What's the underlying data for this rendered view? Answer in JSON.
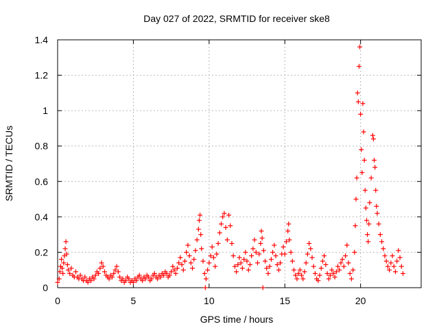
{
  "chart_data": {
    "type": "scatter",
    "title": "Day 027 of 2022, SRMTID for receiver ske8",
    "xlabel": "GPS time / hours",
    "ylabel": "SRMTID / TECUs",
    "xlim": [
      0,
      24
    ],
    "ylim": [
      0,
      1.4
    ],
    "xticks": [
      0,
      5,
      10,
      15,
      20
    ],
    "xtick_labels": [
      "0",
      "5",
      "10",
      "15",
      "20"
    ],
    "yticks": [
      0,
      0.2,
      0.4,
      0.6,
      0.8,
      1.0,
      1.2,
      1.4
    ],
    "ytick_labels": [
      "0",
      "0.2",
      "0.4",
      "0.6",
      "0.8",
      "1",
      "1.2",
      "1.4"
    ],
    "grid": true,
    "marker": "+",
    "series": [
      {
        "name": "SRMTID",
        "color": "#ff0000",
        "points": [
          [
            0.0,
            0.03
          ],
          [
            0.1,
            0.05
          ],
          [
            0.15,
            0.09
          ],
          [
            0.2,
            0.12
          ],
          [
            0.25,
            0.16
          ],
          [
            0.3,
            0.11
          ],
          [
            0.35,
            0.08
          ],
          [
            0.4,
            0.14
          ],
          [
            0.45,
            0.18
          ],
          [
            0.5,
            0.22
          ],
          [
            0.55,
            0.26
          ],
          [
            0.6,
            0.19
          ],
          [
            0.65,
            0.13
          ],
          [
            0.7,
            0.1
          ],
          [
            0.8,
            0.08
          ],
          [
            0.9,
            0.11
          ],
          [
            1.0,
            0.07
          ],
          [
            1.1,
            0.06
          ],
          [
            1.2,
            0.09
          ],
          [
            1.3,
            0.06
          ],
          [
            1.4,
            0.05
          ],
          [
            1.5,
            0.07
          ],
          [
            1.6,
            0.05
          ],
          [
            1.7,
            0.04
          ],
          [
            1.8,
            0.06
          ],
          [
            1.9,
            0.04
          ],
          [
            2.0,
            0.03
          ],
          [
            2.1,
            0.05
          ],
          [
            2.2,
            0.04
          ],
          [
            2.3,
            0.06
          ],
          [
            2.4,
            0.05
          ],
          [
            2.5,
            0.07
          ],
          [
            2.6,
            0.09
          ],
          [
            2.7,
            0.08
          ],
          [
            2.8,
            0.11
          ],
          [
            2.9,
            0.14
          ],
          [
            3.0,
            0.12
          ],
          [
            3.1,
            0.09
          ],
          [
            3.2,
            0.07
          ],
          [
            3.3,
            0.06
          ],
          [
            3.4,
            0.05
          ],
          [
            3.5,
            0.07
          ],
          [
            3.6,
            0.06
          ],
          [
            3.7,
            0.08
          ],
          [
            3.8,
            0.1
          ],
          [
            3.9,
            0.12
          ],
          [
            4.0,
            0.09
          ],
          [
            4.1,
            0.06
          ],
          [
            4.2,
            0.04
          ],
          [
            4.3,
            0.05
          ],
          [
            4.4,
            0.03
          ],
          [
            4.5,
            0.04
          ],
          [
            4.6,
            0.06
          ],
          [
            4.7,
            0.05
          ],
          [
            4.8,
            0.03
          ],
          [
            4.9,
            0.04
          ],
          [
            5.0,
            0.03
          ],
          [
            5.1,
            0.05
          ],
          [
            5.2,
            0.04
          ],
          [
            5.3,
            0.06
          ],
          [
            5.4,
            0.07
          ],
          [
            5.5,
            0.05
          ],
          [
            5.6,
            0.04
          ],
          [
            5.7,
            0.06
          ],
          [
            5.8,
            0.05
          ],
          [
            5.9,
            0.07
          ],
          [
            6.0,
            0.06
          ],
          [
            6.1,
            0.04
          ],
          [
            6.2,
            0.05
          ],
          [
            6.3,
            0.07
          ],
          [
            6.4,
            0.08
          ],
          [
            6.5,
            0.06
          ],
          [
            6.6,
            0.05
          ],
          [
            6.7,
            0.07
          ],
          [
            6.8,
            0.06
          ],
          [
            6.9,
            0.08
          ],
          [
            7.0,
            0.07
          ],
          [
            7.1,
            0.09
          ],
          [
            7.2,
            0.08
          ],
          [
            7.3,
            0.06
          ],
          [
            7.4,
            0.07
          ],
          [
            7.5,
            0.09
          ],
          [
            7.6,
            0.12
          ],
          [
            7.7,
            0.1
          ],
          [
            7.8,
            0.08
          ],
          [
            7.9,
            0.11
          ],
          [
            8.0,
            0.14
          ],
          [
            8.1,
            0.17
          ],
          [
            8.2,
            0.13
          ],
          [
            8.3,
            0.1
          ],
          [
            8.4,
            0.15
          ],
          [
            8.5,
            0.2
          ],
          [
            8.6,
            0.24
          ],
          [
            8.7,
            0.18
          ],
          [
            8.8,
            0.14
          ],
          [
            8.9,
            0.11
          ],
          [
            9.0,
            0.16
          ],
          [
            9.1,
            0.21
          ],
          [
            9.2,
            0.27
          ],
          [
            9.3,
            0.33
          ],
          [
            9.35,
            0.38
          ],
          [
            9.4,
            0.41
          ],
          [
            9.45,
            0.3
          ],
          [
            9.5,
            0.22
          ],
          [
            9.6,
            0.15
          ],
          [
            9.7,
            0.08
          ],
          [
            9.75,
            0.0
          ],
          [
            9.8,
            0.05
          ],
          [
            9.9,
            0.1
          ],
          [
            10.0,
            0.14
          ],
          [
            10.1,
            0.18
          ],
          [
            10.2,
            0.23
          ],
          [
            10.3,
            0.17
          ],
          [
            10.4,
            0.12
          ],
          [
            10.5,
            0.19
          ],
          [
            10.6,
            0.25
          ],
          [
            10.7,
            0.31
          ],
          [
            10.8,
            0.36
          ],
          [
            10.9,
            0.4
          ],
          [
            11.0,
            0.42
          ],
          [
            11.1,
            0.34
          ],
          [
            11.2,
            0.27
          ],
          [
            11.3,
            0.41
          ],
          [
            11.4,
            0.35
          ],
          [
            11.5,
            0.25
          ],
          [
            11.6,
            0.18
          ],
          [
            11.7,
            0.12
          ],
          [
            11.8,
            0.09
          ],
          [
            11.9,
            0.13
          ],
          [
            12.0,
            0.17
          ],
          [
            12.1,
            0.14
          ],
          [
            12.2,
            0.11
          ],
          [
            12.3,
            0.16
          ],
          [
            12.4,
            0.2
          ],
          [
            12.5,
            0.15
          ],
          [
            12.6,
            0.1
          ],
          [
            12.7,
            0.13
          ],
          [
            12.8,
            0.18
          ],
          [
            12.9,
            0.22
          ],
          [
            13.0,
            0.27
          ],
          [
            13.1,
            0.2
          ],
          [
            13.2,
            0.14
          ],
          [
            13.3,
            0.19
          ],
          [
            13.4,
            0.25
          ],
          [
            13.45,
            0.32
          ],
          [
            13.5,
            0.28
          ],
          [
            13.55,
            0.0
          ],
          [
            13.6,
            0.21
          ],
          [
            13.7,
            0.15
          ],
          [
            13.8,
            0.11
          ],
          [
            13.9,
            0.08
          ],
          [
            14.0,
            0.12
          ],
          [
            14.1,
            0.16
          ],
          [
            14.2,
            0.2
          ],
          [
            14.3,
            0.24
          ],
          [
            14.4,
            0.18
          ],
          [
            14.5,
            0.13
          ],
          [
            14.6,
            0.1
          ],
          [
            14.7,
            0.14
          ],
          [
            14.8,
            0.19
          ],
          [
            14.9,
            0.23
          ],
          [
            15.0,
            0.19
          ],
          [
            15.1,
            0.26
          ],
          [
            15.2,
            0.32
          ],
          [
            15.25,
            0.36
          ],
          [
            15.3,
            0.27
          ],
          [
            15.4,
            0.2
          ],
          [
            15.5,
            0.15
          ],
          [
            15.6,
            0.1
          ],
          [
            15.7,
            0.07
          ],
          [
            15.8,
            0.05
          ],
          [
            15.9,
            0.08
          ],
          [
            16.0,
            0.1
          ],
          [
            16.1,
            0.07
          ],
          [
            16.2,
            0.05
          ],
          [
            16.3,
            0.09
          ],
          [
            16.4,
            0.14
          ],
          [
            16.5,
            0.19
          ],
          [
            16.6,
            0.25
          ],
          [
            16.7,
            0.22
          ],
          [
            16.8,
            0.17
          ],
          [
            16.9,
            0.12
          ],
          [
            17.0,
            0.08
          ],
          [
            17.1,
            0.05
          ],
          [
            17.2,
            0.04
          ],
          [
            17.3,
            0.07
          ],
          [
            17.4,
            0.11
          ],
          [
            17.5,
            0.15
          ],
          [
            17.6,
            0.18
          ],
          [
            17.7,
            0.13
          ],
          [
            17.8,
            0.08
          ],
          [
            17.9,
            0.05
          ],
          [
            18.0,
            0.07
          ],
          [
            18.1,
            0.1
          ],
          [
            18.2,
            0.08
          ],
          [
            18.3,
            0.06
          ],
          [
            18.4,
            0.09
          ],
          [
            18.5,
            0.12
          ],
          [
            18.6,
            0.1
          ],
          [
            18.7,
            0.14
          ],
          [
            18.8,
            0.16
          ],
          [
            18.9,
            0.12
          ],
          [
            19.0,
            0.18
          ],
          [
            19.1,
            0.24
          ],
          [
            19.2,
            0.14
          ],
          [
            19.3,
            0.08
          ],
          [
            19.4,
            0.05
          ],
          [
            19.5,
            0.1
          ],
          [
            19.6,
            0.2
          ],
          [
            19.65,
            0.35
          ],
          [
            19.7,
            0.5
          ],
          [
            19.75,
            0.62
          ],
          [
            19.8,
            1.1
          ],
          [
            19.85,
            1.05
          ],
          [
            19.9,
            1.25
          ],
          [
            19.95,
            1.36
          ],
          [
            20.0,
            0.98
          ],
          [
            20.05,
            0.78
          ],
          [
            20.1,
            0.65
          ],
          [
            20.15,
            1.04
          ],
          [
            20.2,
            0.88
          ],
          [
            20.25,
            0.72
          ],
          [
            20.3,
            0.55
          ],
          [
            20.35,
            0.45
          ],
          [
            20.4,
            0.38
          ],
          [
            20.45,
            0.3
          ],
          [
            20.5,
            0.26
          ],
          [
            20.55,
            0.36
          ],
          [
            20.6,
            0.48
          ],
          [
            20.7,
            0.62
          ],
          [
            20.8,
            0.86
          ],
          [
            20.85,
            0.84
          ],
          [
            20.9,
            0.72
          ],
          [
            20.95,
            0.68
          ],
          [
            21.0,
            0.55
          ],
          [
            21.05,
            0.46
          ],
          [
            21.1,
            0.42
          ],
          [
            21.2,
            0.36
          ],
          [
            21.3,
            0.3
          ],
          [
            21.4,
            0.26
          ],
          [
            21.5,
            0.22
          ],
          [
            21.6,
            0.18
          ],
          [
            21.7,
            0.15
          ],
          [
            21.8,
            0.12
          ],
          [
            21.9,
            0.1
          ],
          [
            22.0,
            0.14
          ],
          [
            22.1,
            0.18
          ],
          [
            22.2,
            0.12
          ],
          [
            22.3,
            0.09
          ],
          [
            22.4,
            0.15
          ],
          [
            22.5,
            0.21
          ],
          [
            22.6,
            0.17
          ],
          [
            22.7,
            0.12
          ],
          [
            22.8,
            0.08
          ]
        ]
      }
    ]
  }
}
